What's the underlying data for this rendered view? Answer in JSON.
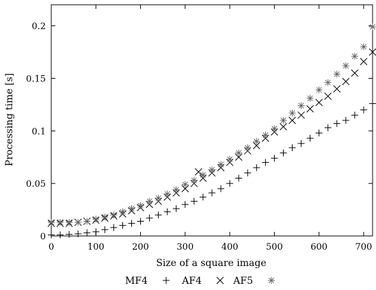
{
  "chart_data": {
    "type": "scatter",
    "title": "",
    "xlabel": "Size of a square image",
    "ylabel": "Processing time [s]",
    "xlim": [
      0,
      720
    ],
    "ylim": [
      0,
      0.22
    ],
    "x_ticks": [
      0,
      100,
      200,
      300,
      400,
      500,
      600,
      700
    ],
    "y_ticks": [
      0,
      0.05,
      0.1,
      0.15,
      0.2
    ],
    "x_tick_labels": [
      "0",
      "100",
      "200",
      "300",
      "400",
      "500",
      "600",
      "700"
    ],
    "y_tick_labels": [
      "0",
      "0.05",
      "0.1",
      "0.15",
      "0.2"
    ],
    "grid": false,
    "legend_position": "bottom",
    "series": [
      {
        "name": "MF4",
        "marker": "plus",
        "x": [
          0,
          20,
          40,
          60,
          80,
          100,
          120,
          140,
          160,
          180,
          200,
          220,
          240,
          260,
          280,
          300,
          320,
          340,
          360,
          380,
          400,
          420,
          440,
          460,
          480,
          500,
          520,
          540,
          560,
          580,
          600,
          620,
          640,
          660,
          680,
          700,
          720
        ],
        "y": [
          0.001,
          0.001,
          0.0015,
          0.002,
          0.003,
          0.004,
          0.006,
          0.008,
          0.01,
          0.012,
          0.014,
          0.017,
          0.02,
          0.023,
          0.026,
          0.03,
          0.033,
          0.037,
          0.041,
          0.045,
          0.05,
          0.055,
          0.06,
          0.065,
          0.07,
          0.074,
          0.079,
          0.084,
          0.088,
          0.093,
          0.098,
          0.103,
          0.107,
          0.11,
          0.115,
          0.12,
          0.126
        ]
      },
      {
        "name": "AF4",
        "marker": "cross",
        "x": [
          0,
          20,
          40,
          60,
          80,
          100,
          120,
          140,
          160,
          180,
          200,
          220,
          240,
          260,
          280,
          300,
          320,
          330,
          340,
          360,
          380,
          400,
          420,
          440,
          460,
          480,
          500,
          520,
          540,
          560,
          580,
          600,
          620,
          640,
          660,
          680,
          700,
          720
        ],
        "y": [
          0.012,
          0.012,
          0.012,
          0.013,
          0.014,
          0.015,
          0.017,
          0.019,
          0.021,
          0.024,
          0.027,
          0.03,
          0.033,
          0.037,
          0.041,
          0.045,
          0.05,
          0.061,
          0.055,
          0.06,
          0.065,
          0.07,
          0.075,
          0.081,
          0.086,
          0.093,
          0.099,
          0.104,
          0.11,
          0.115,
          0.121,
          0.127,
          0.133,
          0.14,
          0.147,
          0.155,
          0.166,
          0.175
        ]
      },
      {
        "name": "AF5",
        "marker": "star",
        "x": [
          0,
          20,
          40,
          60,
          80,
          100,
          120,
          140,
          160,
          180,
          200,
          220,
          240,
          260,
          280,
          300,
          320,
          340,
          360,
          380,
          400,
          420,
          440,
          460,
          480,
          500,
          520,
          540,
          560,
          580,
          600,
          620,
          640,
          660,
          680,
          700,
          720
        ],
        "y": [
          0.013,
          0.013,
          0.013,
          0.013,
          0.014,
          0.016,
          0.018,
          0.02,
          0.023,
          0.026,
          0.029,
          0.033,
          0.036,
          0.04,
          0.044,
          0.049,
          0.053,
          0.058,
          0.063,
          0.068,
          0.073,
          0.079,
          0.084,
          0.09,
          0.096,
          0.102,
          0.11,
          0.117,
          0.124,
          0.131,
          0.139,
          0.146,
          0.154,
          0.162,
          0.171,
          0.18,
          0.199
        ]
      }
    ]
  }
}
